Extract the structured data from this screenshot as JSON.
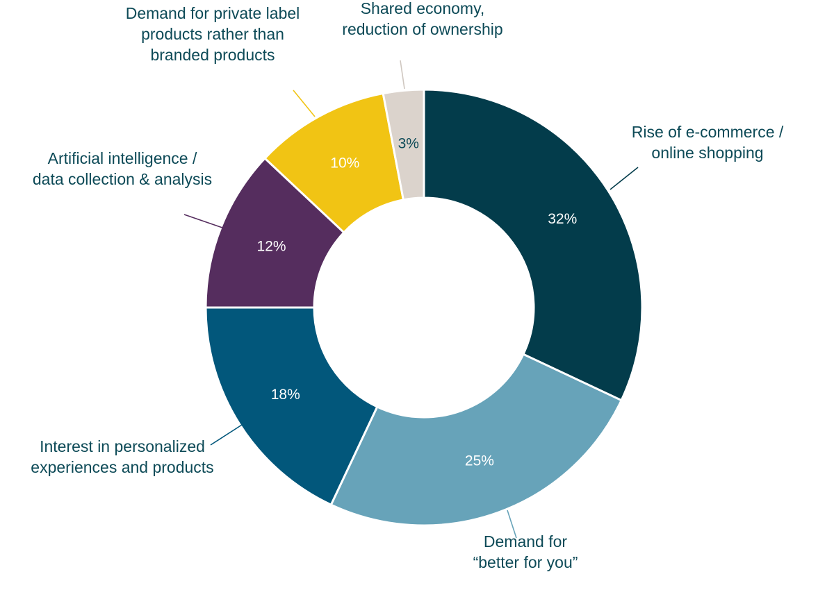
{
  "chart_data": {
    "type": "pie",
    "variant": "donut",
    "categories": [
      "Rise of e-commerce / online shopping",
      "Demand for “better for you”",
      "Interest in personalized experiences and products",
      "Artificial intelligence / data collection & analysis",
      "Demand for private label products rather than branded products",
      "Shared economy, reduction of ownership"
    ],
    "values": [
      32,
      25,
      18,
      12,
      10,
      3
    ],
    "slices": [
      {
        "label_lines": [
          "Rise of e-commerce /",
          "online shopping"
        ],
        "value": 32,
        "value_label": "32%",
        "color": "#033c4b",
        "value_text_color": "#ffffff"
      },
      {
        "label_lines": [
          "Demand for",
          "“better for you”"
        ],
        "value": 25,
        "value_label": "25%",
        "color": "#67a3b9",
        "value_text_color": "#ffffff"
      },
      {
        "label_lines": [
          "Interest in personalized",
          "experiences and products"
        ],
        "value": 18,
        "value_label": "18%",
        "color": "#02577b",
        "value_text_color": "#ffffff"
      },
      {
        "label_lines": [
          "Artificial intelligence /",
          "data collection & analysis"
        ],
        "value": 12,
        "value_label": "12%",
        "color": "#552d5e",
        "value_text_color": "#ffffff"
      },
      {
        "label_lines": [
          "Demand for private label",
          "products rather than",
          "branded products"
        ],
        "value": 10,
        "value_label": "10%",
        "color": "#f1c414",
        "value_text_color": "#ffffff"
      },
      {
        "label_lines": [
          "Shared economy,",
          "reduction of ownership"
        ],
        "value": 3,
        "value_label": "3%",
        "color": "#dbd3cc",
        "value_text_color": "#0d4a57"
      }
    ],
    "legend": "none",
    "label_color": "#0d4a57"
  }
}
